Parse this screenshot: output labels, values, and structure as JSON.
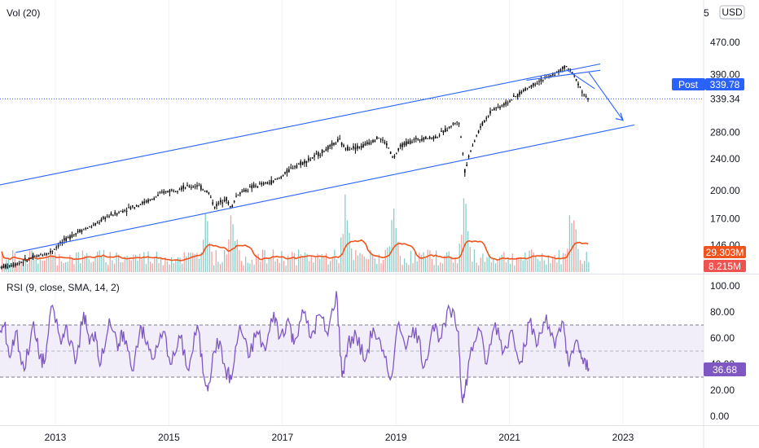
{
  "chart_data": [
    {
      "type": "candlestick",
      "title": "Vol (20)",
      "currency": "USD",
      "y_axis_labels": [
        "470.00",
        "390.00",
        "339.34",
        "280.00",
        "240.00",
        "200.00",
        "170.00",
        "146.00"
      ],
      "y_axis_top_partial": "5",
      "y_ticks": [
        470,
        390,
        339.34,
        280,
        240,
        200,
        170,
        146
      ],
      "ylim": [
        130,
        560
      ],
      "x_ticks": [
        "2013",
        "2015",
        "2017",
        "2019",
        "2021",
        "2023"
      ],
      "post_label": "Post",
      "post_value": "339.78",
      "last_price_line": 339.34,
      "volume_badge_1": "29.303M",
      "volume_badge_2": "8.215M",
      "colors": {
        "candles": "#000000",
        "trendlines": "#2962ff",
        "volume_up": "#26a69a",
        "volume_down": "#ef5350",
        "volume_ma": "#f0531c",
        "post_badge": "#2962ff",
        "vol_badge_1": "#f0531c",
        "vol_badge_2": "#ef5350"
      },
      "price_path": [
        [
          2012.0,
          128
        ],
        [
          2012.3,
          131
        ],
        [
          2012.6,
          136
        ],
        [
          2012.9,
          140
        ],
        [
          2013.1,
          148
        ],
        [
          2013.4,
          158
        ],
        [
          2013.7,
          164
        ],
        [
          2013.9,
          172
        ],
        [
          2014.1,
          176
        ],
        [
          2014.4,
          183
        ],
        [
          2014.7,
          190
        ],
        [
          2014.9,
          198
        ],
        [
          2015.2,
          203
        ],
        [
          2015.5,
          206
        ],
        [
          2015.7,
          198
        ],
        [
          2015.8,
          182
        ],
        [
          2016.0,
          192
        ],
        [
          2016.1,
          180
        ],
        [
          2016.2,
          196
        ],
        [
          2016.5,
          205
        ],
        [
          2016.8,
          210
        ],
        [
          2016.95,
          215
        ],
        [
          2017.2,
          230
        ],
        [
          2017.5,
          240
        ],
        [
          2017.8,
          255
        ],
        [
          2018.0,
          268
        ],
        [
          2018.1,
          255
        ],
        [
          2018.4,
          258
        ],
        [
          2018.7,
          272
        ],
        [
          2018.85,
          260
        ],
        [
          2018.95,
          240
        ],
        [
          2019.1,
          260
        ],
        [
          2019.4,
          270
        ],
        [
          2019.7,
          272
        ],
        [
          2019.9,
          285
        ],
        [
          2020.1,
          300
        ],
        [
          2020.18,
          250
        ],
        [
          2020.22,
          220
        ],
        [
          2020.3,
          250
        ],
        [
          2020.5,
          290
        ],
        [
          2020.7,
          320
        ],
        [
          2020.85,
          325
        ],
        [
          2021.0,
          335
        ],
        [
          2021.3,
          360
        ],
        [
          2021.5,
          375
        ],
        [
          2021.7,
          385
        ],
        [
          2021.9,
          400
        ],
        [
          2022.0,
          410
        ],
        [
          2022.1,
          395
        ],
        [
          2022.2,
          375
        ],
        [
          2022.3,
          350
        ],
        [
          2022.4,
          335
        ]
      ],
      "trendlines": [
        {
          "from": [
            2011.9,
            205
          ],
          "to": [
            2022.6,
            415
          ]
        },
        {
          "from": [
            2012.3,
            140
          ],
          "to": [
            2023.2,
            292
          ]
        },
        {
          "from": [
            2021.3,
            378
          ],
          "to": [
            2022.6,
            400
          ]
        },
        {
          "from": [
            2022.0,
            402
          ],
          "to": [
            2022.5,
            360
          ]
        },
        {
          "from": [
            2022.4,
            395
          ],
          "to": [
            2023.0,
            300
          ]
        }
      ]
    },
    {
      "type": "line",
      "title": "RSI (9, close, SMA, 14, 2)",
      "y_axis_labels": [
        "100.00",
        "80.00",
        "60.00",
        "40.00",
        "20.00",
        "0.00"
      ],
      "y_ticks": [
        100,
        80,
        60,
        40,
        20,
        0
      ],
      "ylim": [
        -5,
        105
      ],
      "band": [
        30,
        70
      ],
      "midline": 50,
      "last_value": "36.68",
      "colors": {
        "line": "#7e57c2",
        "band_fill": "#ede7f6",
        "badge": "#7e57c2"
      },
      "series": [
        [
          2012.0,
          60
        ],
        [
          2012.1,
          70
        ],
        [
          2012.2,
          45
        ],
        [
          2012.3,
          65
        ],
        [
          2012.45,
          35
        ],
        [
          2012.6,
          70
        ],
        [
          2012.7,
          50
        ],
        [
          2012.8,
          40
        ],
        [
          2012.95,
          85
        ],
        [
          2013.1,
          55
        ],
        [
          2013.2,
          70
        ],
        [
          2013.35,
          40
        ],
        [
          2013.5,
          80
        ],
        [
          2013.6,
          55
        ],
        [
          2013.7,
          65
        ],
        [
          2013.8,
          40
        ],
        [
          2013.95,
          75
        ],
        [
          2014.1,
          50
        ],
        [
          2014.2,
          65
        ],
        [
          2014.35,
          35
        ],
        [
          2014.5,
          70
        ],
        [
          2014.6,
          55
        ],
        [
          2014.75,
          45
        ],
        [
          2014.9,
          65
        ],
        [
          2015.05,
          40
        ],
        [
          2015.2,
          60
        ],
        [
          2015.35,
          35
        ],
        [
          2015.5,
          70
        ],
        [
          2015.62,
          30
        ],
        [
          2015.7,
          25
        ],
        [
          2015.85,
          60
        ],
        [
          2016.0,
          35
        ],
        [
          2016.1,
          28
        ],
        [
          2016.25,
          70
        ],
        [
          2016.4,
          45
        ],
        [
          2016.55,
          65
        ],
        [
          2016.7,
          50
        ],
        [
          2016.85,
          80
        ],
        [
          2016.95,
          60
        ],
        [
          2017.1,
          75
        ],
        [
          2017.2,
          55
        ],
        [
          2017.35,
          82
        ],
        [
          2017.5,
          60
        ],
        [
          2017.65,
          78
        ],
        [
          2017.8,
          62
        ],
        [
          2017.95,
          96
        ],
        [
          2018.05,
          30
        ],
        [
          2018.15,
          55
        ],
        [
          2018.3,
          62
        ],
        [
          2018.45,
          42
        ],
        [
          2018.6,
          68
        ],
        [
          2018.75,
          50
        ],
        [
          2018.9,
          28
        ],
        [
          2019.05,
          72
        ],
        [
          2019.2,
          55
        ],
        [
          2019.35,
          68
        ],
        [
          2019.5,
          38
        ],
        [
          2019.65,
          70
        ],
        [
          2019.8,
          60
        ],
        [
          2019.95,
          82
        ],
        [
          2020.1,
          65
        ],
        [
          2020.15,
          20
        ],
        [
          2020.2,
          14
        ],
        [
          2020.3,
          45
        ],
        [
          2020.45,
          68
        ],
        [
          2020.6,
          40
        ],
        [
          2020.75,
          72
        ],
        [
          2020.9,
          50
        ],
        [
          2021.05,
          66
        ],
        [
          2021.2,
          42
        ],
        [
          2021.35,
          72
        ],
        [
          2021.5,
          55
        ],
        [
          2021.65,
          78
        ],
        [
          2021.8,
          52
        ],
        [
          2021.95,
          72
        ],
        [
          2022.05,
          38
        ],
        [
          2022.2,
          58
        ],
        [
          2022.3,
          40
        ],
        [
          2022.4,
          36.68
        ]
      ]
    }
  ]
}
